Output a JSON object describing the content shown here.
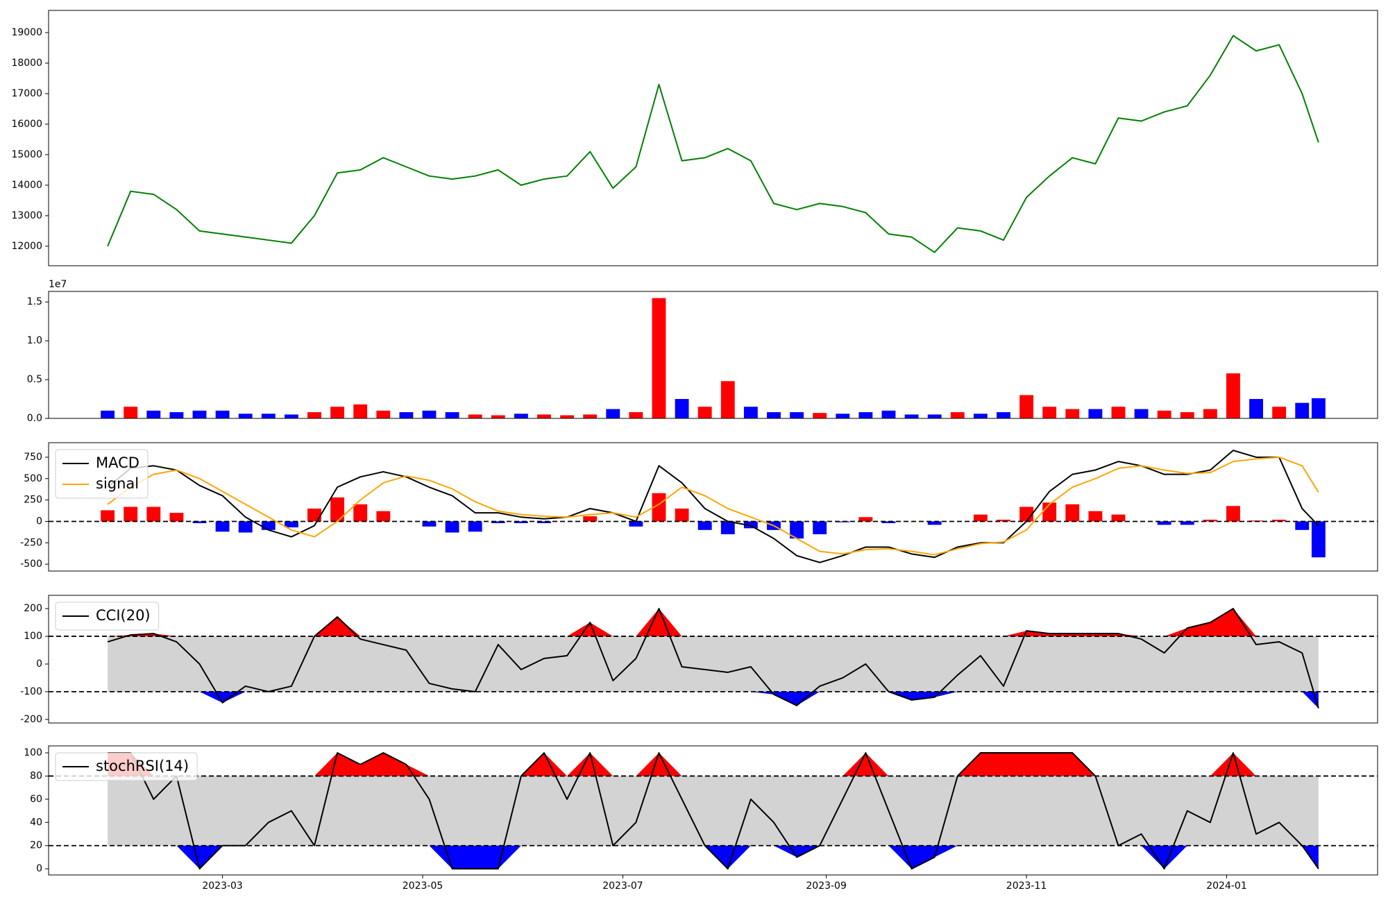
{
  "chart_data": [
    {
      "type": "line",
      "x": [
        18,
        25,
        32,
        39,
        46,
        53,
        60,
        67,
        74,
        81,
        88,
        95,
        102,
        109,
        116,
        123,
        130,
        137,
        144,
        151,
        158,
        165,
        172,
        179,
        186,
        193,
        200,
        207,
        214,
        221,
        228,
        235,
        242,
        249,
        256,
        263,
        270,
        277,
        284,
        291,
        298,
        305,
        312,
        319,
        326,
        333,
        340,
        347,
        354,
        361,
        368,
        375,
        382,
        387
      ],
      "series": [
        {
          "color": "green",
          "values": [
            12000,
            13800,
            13700,
            13200,
            12500,
            12400,
            12300,
            12200,
            12100,
            13000,
            14400,
            14500,
            14900,
            14600,
            14300,
            14200,
            14300,
            14500,
            14000,
            14200,
            14300,
            15100,
            13900,
            14600,
            17300,
            14800,
            14900,
            15200,
            14800,
            13400,
            13200,
            13400,
            13300,
            13100,
            12400,
            12300,
            11800,
            12600,
            12500,
            12200,
            13600,
            14300,
            14900,
            14700,
            16200,
            16100,
            16400,
            16600,
            17600,
            18900,
            18400,
            18600,
            17000,
            15400
          ]
        }
      ],
      "xlim": [
        0,
        405
      ],
      "ylim": [
        11360,
        19727
      ],
      "yticks": [
        12000,
        13000,
        14000,
        15000,
        16000,
        17000,
        18000,
        19000
      ]
    },
    {
      "type": "volume",
      "x": [
        18,
        25,
        32,
        39,
        46,
        53,
        60,
        67,
        74,
        81,
        88,
        95,
        102,
        109,
        116,
        123,
        130,
        137,
        144,
        151,
        158,
        165,
        172,
        179,
        186,
        193,
        200,
        207,
        214,
        221,
        228,
        235,
        242,
        249,
        256,
        263,
        270,
        277,
        284,
        291,
        298,
        305,
        312,
        319,
        326,
        333,
        340,
        347,
        354,
        361,
        368,
        375,
        382,
        387
      ],
      "values": [
        0.1,
        0.15,
        0.1,
        0.08,
        0.1,
        0.1,
        0.06,
        0.06,
        0.05,
        0.08,
        0.15,
        0.18,
        0.1,
        0.08,
        0.1,
        0.08,
        0.05,
        0.04,
        0.06,
        0.05,
        0.04,
        0.05,
        0.12,
        0.08,
        1.55,
        0.25,
        0.15,
        0.48,
        0.15,
        0.08,
        0.08,
        0.07,
        0.06,
        0.08,
        0.1,
        0.05,
        0.05,
        0.08,
        0.06,
        0.08,
        0.3,
        0.15,
        0.12,
        0.12,
        0.15,
        0.12,
        0.1,
        0.08,
        0.12,
        0.58,
        0.25,
        0.15,
        0.2,
        0.26
      ],
      "up_color": "red",
      "down_color": "blue",
      "offset_label": "1e7",
      "xlim": [
        0,
        405
      ],
      "ylim": [
        0,
        1.636
      ],
      "yticks": [
        {
          "value": 0,
          "label": "0.0"
        },
        {
          "value": 0.5,
          "label": "0.5"
        },
        {
          "value": 1,
          "label": "1.0"
        },
        {
          "value": 1.5,
          "label": "1.5"
        }
      ]
    },
    {
      "type": "macd",
      "x": [
        18,
        25,
        32,
        39,
        46,
        53,
        60,
        67,
        74,
        81,
        88,
        95,
        102,
        109,
        116,
        123,
        130,
        137,
        144,
        151,
        158,
        165,
        172,
        179,
        186,
        193,
        200,
        207,
        214,
        221,
        228,
        235,
        242,
        249,
        256,
        263,
        270,
        277,
        284,
        291,
        298,
        305,
        312,
        319,
        326,
        333,
        340,
        347,
        354,
        361,
        368,
        375,
        382,
        387
      ],
      "series": [
        {
          "name": "MACD",
          "color": "black",
          "values": [
            400,
            620,
            650,
            600,
            420,
            300,
            50,
            -100,
            -180,
            -50,
            400,
            520,
            580,
            520,
            400,
            300,
            100,
            100,
            50,
            30,
            50,
            150,
            100,
            0,
            650,
            450,
            150,
            0,
            -50,
            -200,
            -400,
            -480,
            -400,
            -300,
            -300,
            -380,
            -420,
            -300,
            -250,
            -250,
            0,
            350,
            550,
            600,
            700,
            650,
            550,
            550,
            600,
            830,
            750,
            750,
            150,
            -50
          ]
        },
        {
          "name": "signal",
          "color": "orange",
          "values": [
            200,
            400,
            550,
            600,
            500,
            350,
            200,
            50,
            -100,
            -180,
            0,
            250,
            450,
            530,
            480,
            380,
            230,
            120,
            80,
            60,
            50,
            80,
            100,
            50,
            200,
            400,
            300,
            150,
            50,
            -50,
            -200,
            -350,
            -380,
            -330,
            -320,
            -350,
            -390,
            -320,
            -260,
            -240,
            -100,
            200,
            400,
            500,
            620,
            650,
            600,
            560,
            570,
            700,
            730,
            750,
            650,
            340
          ]
        }
      ],
      "histogram": {
        "up_color": "red",
        "down_color": "blue",
        "values": [
          130,
          170,
          170,
          100,
          -20,
          -120,
          -130,
          -100,
          -70,
          150,
          280,
          200,
          120,
          0,
          -60,
          -130,
          -120,
          -20,
          -20,
          -20,
          0,
          60,
          0,
          -60,
          330,
          150,
          -100,
          -150,
          -80,
          -100,
          -200,
          -150,
          -10,
          50,
          -20,
          0,
          -40,
          0,
          80,
          20,
          170,
          220,
          200,
          120,
          80,
          0,
          -40,
          -40,
          20,
          180,
          10,
          20,
          -100,
          -420
        ]
      },
      "hlines": [
        0
      ],
      "legend": "upper left",
      "xlim": [
        0,
        405
      ],
      "ylim": [
        -580,
        920
      ],
      "yticks": [
        -500,
        -250,
        0,
        250,
        500,
        750
      ]
    },
    {
      "type": "oscillator",
      "x": [
        18,
        25,
        32,
        39,
        46,
        53,
        60,
        67,
        74,
        81,
        88,
        95,
        102,
        109,
        116,
        123,
        130,
        137,
        144,
        151,
        158,
        165,
        172,
        179,
        186,
        193,
        200,
        207,
        214,
        221,
        228,
        235,
        242,
        249,
        256,
        263,
        270,
        277,
        284,
        291,
        298,
        305,
        312,
        319,
        326,
        333,
        340,
        347,
        354,
        361,
        368,
        375,
        382,
        387
      ],
      "series": [
        {
          "name": "CCI(20)",
          "color": "black",
          "values": [
            80,
            105,
            110,
            80,
            0,
            -140,
            -80,
            -100,
            -80,
            100,
            170,
            90,
            70,
            50,
            -70,
            -90,
            -100,
            70,
            -20,
            20,
            30,
            150,
            -60,
            20,
            200,
            -10,
            -20,
            -30,
            -10,
            -110,
            -150,
            -80,
            -50,
            0,
            -100,
            -130,
            -120,
            -40,
            30,
            -80,
            120,
            110,
            110,
            110,
            110,
            90,
            40,
            130,
            150,
            200,
            70,
            80,
            40,
            -160
          ]
        }
      ],
      "bands": [
        -100,
        100
      ],
      "band_color": "lightgray",
      "high_color": "red",
      "low_color": "blue",
      "legend": "upper left",
      "xlim": [
        0,
        405
      ],
      "ylim": [
        -213,
        248
      ],
      "yticks": [
        -200,
        -100,
        0,
        100,
        200
      ]
    },
    {
      "type": "oscillator",
      "x": [
        18,
        25,
        32,
        39,
        46,
        53,
        60,
        67,
        74,
        81,
        88,
        95,
        102,
        109,
        116,
        123,
        130,
        137,
        144,
        151,
        158,
        165,
        172,
        179,
        186,
        193,
        200,
        207,
        214,
        221,
        228,
        235,
        242,
        249,
        256,
        263,
        270,
        277,
        284,
        291,
        298,
        305,
        312,
        319,
        326,
        333,
        340,
        347,
        354,
        361,
        368,
        375,
        382,
        387
      ],
      "series": [
        {
          "name": "stochRSI(14)",
          "color": "black",
          "values": [
            100,
            100,
            60,
            80,
            0,
            20,
            20,
            40,
            50,
            20,
            100,
            90,
            100,
            90,
            60,
            0,
            0,
            0,
            80,
            100,
            60,
            100,
            20,
            40,
            100,
            60,
            20,
            0,
            60,
            40,
            10,
            20,
            60,
            100,
            50,
            0,
            10,
            80,
            100,
            100,
            100,
            100,
            100,
            80,
            20,
            30,
            0,
            50,
            40,
            100,
            30,
            40,
            20,
            0
          ]
        }
      ],
      "bands": [
        20,
        80
      ],
      "band_color": "lightgray",
      "high_color": "red",
      "low_color": "blue",
      "legend": "upper left",
      "xlim": [
        0,
        405
      ],
      "ylim": [
        -5.3,
        106
      ],
      "yticks": [
        0,
        20,
        40,
        60,
        80,
        100
      ],
      "xticks": [
        {
          "value": 53,
          "label": "2023-03"
        },
        {
          "value": 114,
          "label": "2023-05"
        },
        {
          "value": 175,
          "label": "2023-07"
        },
        {
          "value": 237,
          "label": "2023-09"
        },
        {
          "value": 298,
          "label": "2023-11"
        },
        {
          "value": 359,
          "label": "2024-01"
        }
      ]
    }
  ]
}
